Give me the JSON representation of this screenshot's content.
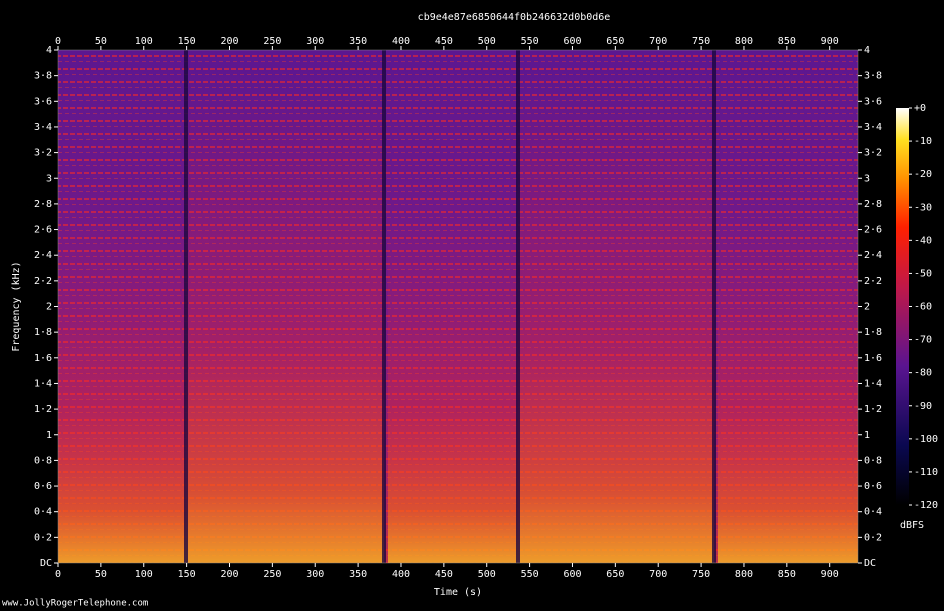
{
  "chart_data": {
    "type": "spectrogram",
    "title": "cb9e4e87e6850644f0b246632d0b0d6e",
    "xlabel": "Time (s)",
    "ylabel": "Frequency (kHz)",
    "xlim": [
      0,
      933
    ],
    "xticks": [
      0,
      50,
      100,
      150,
      200,
      250,
      300,
      350,
      400,
      450,
      500,
      550,
      600,
      650,
      700,
      750,
      800,
      850,
      900
    ],
    "ylim": [
      0,
      4
    ],
    "yticks": [
      {
        "value": 0,
        "label": "DC"
      },
      {
        "value": 0.2,
        "label": "0·2"
      },
      {
        "value": 0.4,
        "label": "0·4"
      },
      {
        "value": 0.6,
        "label": "0·6"
      },
      {
        "value": 0.8,
        "label": "0·8"
      },
      1,
      {
        "value": 1.2,
        "label": "1·2"
      },
      {
        "value": 1.4,
        "label": "1·4"
      },
      {
        "value": 1.6,
        "label": "1·6"
      },
      {
        "value": 1.8,
        "label": "1·8"
      },
      2,
      {
        "value": 2.2,
        "label": "2·2"
      },
      {
        "value": 2.4,
        "label": "2·4"
      },
      {
        "value": 2.6,
        "label": "2·6"
      },
      {
        "value": 2.8,
        "label": "2·8"
      },
      3,
      {
        "value": 3.2,
        "label": "3·2"
      },
      {
        "value": 3.4,
        "label": "3·4"
      },
      {
        "value": 3.6,
        "label": "3·6"
      },
      {
        "value": 3.8,
        "label": "3·8"
      },
      4
    ],
    "colorbar": {
      "label": "dBFS",
      "lim": [
        -120,
        0
      ],
      "ticks": [
        {
          "value": 0,
          "label": "+0"
        },
        -10,
        -20,
        -30,
        -40,
        -50,
        -60,
        -70,
        -80,
        -90,
        -100,
        -110,
        -120
      ]
    }
  },
  "footer": "www.JollyRogerTelephone.com"
}
